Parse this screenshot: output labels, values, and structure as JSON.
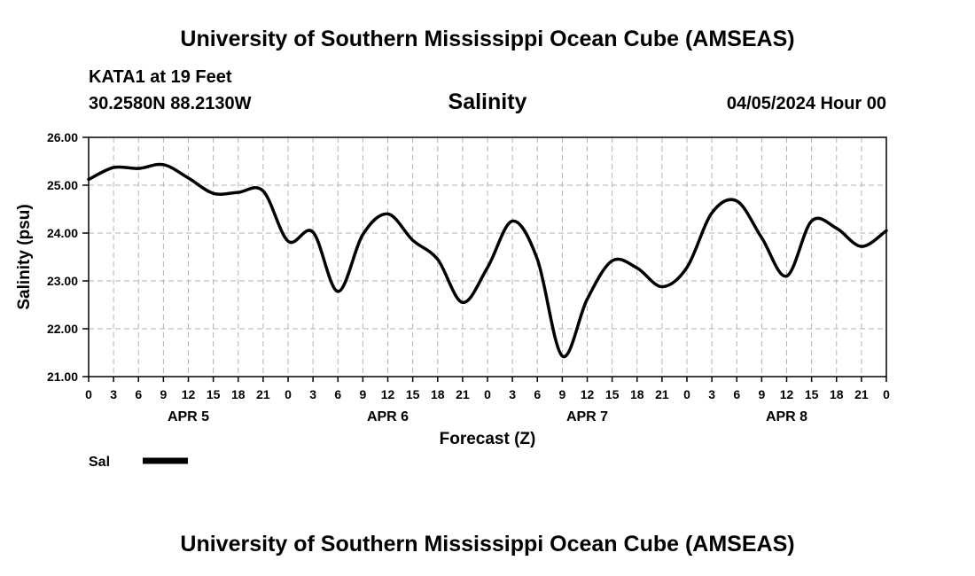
{
  "header": {
    "title": "University of Southern Mississippi Ocean Cube (AMSEAS)",
    "station": "KATA1 at 19 Feet",
    "coords": "30.2580N  88.2130W",
    "datetime": "04/05/2024 Hour 00"
  },
  "footer": {
    "title": "University of Southern Mississippi Ocean Cube (AMSEAS)"
  },
  "chart_data": {
    "type": "line",
    "title": "Salinity",
    "xlabel": "Forecast (Z)",
    "ylabel": "Salinity (psu)",
    "ylim": [
      21.0,
      26.0
    ],
    "yticks": [
      "21.00",
      "22.00",
      "23.00",
      "24.00",
      "25.00",
      "26.00"
    ],
    "xlim": [
      0,
      96
    ],
    "xtick_labels": [
      "0",
      "3",
      "6",
      "9",
      "12",
      "15",
      "18",
      "21",
      "0",
      "3",
      "6",
      "9",
      "12",
      "15",
      "18",
      "21",
      "0",
      "3",
      "6",
      "9",
      "12",
      "15",
      "18",
      "21",
      "0",
      "3",
      "6",
      "9",
      "12",
      "15",
      "18",
      "21",
      "0"
    ],
    "day_labels": [
      {
        "hour": 12,
        "label": "APR 5"
      },
      {
        "hour": 36,
        "label": "APR 6"
      },
      {
        "hour": 60,
        "label": "APR 7"
      },
      {
        "hour": 84,
        "label": "APR 8"
      }
    ],
    "grid": true,
    "legend": {
      "position": "bottom-left",
      "label": "Sal"
    },
    "series": [
      {
        "name": "Sal",
        "color": "#000000",
        "x": [
          0,
          3,
          6,
          9,
          12,
          15,
          18,
          21,
          24,
          27,
          30,
          33,
          36,
          39,
          42,
          45,
          48,
          51,
          54,
          57,
          60,
          63,
          66,
          69,
          72,
          75,
          78,
          81,
          84,
          87,
          90,
          93,
          96
        ],
        "values": [
          25.12,
          25.37,
          25.35,
          25.43,
          25.15,
          24.83,
          24.85,
          24.88,
          23.83,
          24.02,
          22.78,
          23.97,
          24.4,
          23.85,
          23.45,
          22.55,
          23.28,
          24.25,
          23.45,
          21.43,
          22.62,
          23.42,
          23.27,
          22.88,
          23.28,
          24.42,
          24.67,
          23.9,
          23.1,
          24.25,
          24.1,
          23.72,
          24.05
        ]
      }
    ]
  }
}
